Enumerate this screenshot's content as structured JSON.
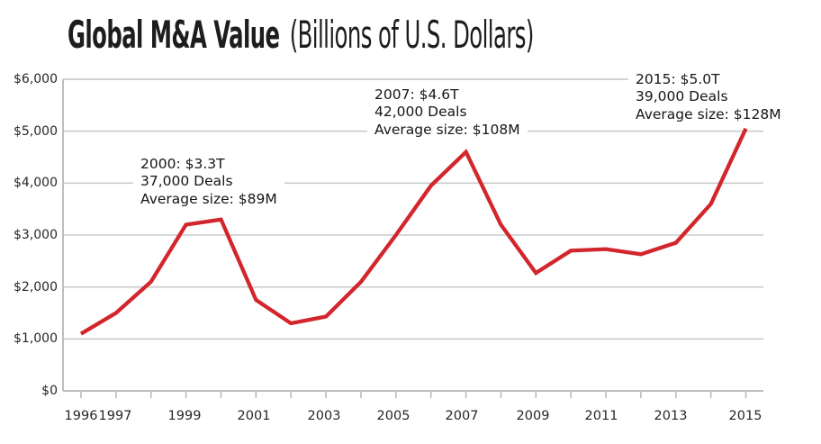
{
  "title": {
    "main": "Global M&A Value",
    "sub": "(Billions of U.S. Dollars)"
  },
  "colors": {
    "line": "#d2262c",
    "gridline": "#c9cbcd",
    "axis": "#bcbec0",
    "tick": "#b9bbbd",
    "title_text": "#1d1d1d",
    "label_text": "#272727",
    "annotation_text": "#161616",
    "background": "#ffffff"
  },
  "annotations": [
    {
      "id": "peak-2000",
      "lines": [
        "2000: $3.3T",
        "37,000 Deals",
        "Average size: $89M"
      ]
    },
    {
      "id": "peak-2007",
      "lines": [
        "2007: $4.6T",
        "42,000 Deals",
        "Average size: $108M"
      ]
    },
    {
      "id": "peak-2015",
      "lines": [
        "2015: $5.0T",
        "39,000 Deals",
        "Average size: $128M"
      ]
    }
  ],
  "chart_data": {
    "type": "line",
    "title": "Global M&A Value (Billions of U.S. Dollars)",
    "series_name": "Global M&A value, billions of U.S. dollars",
    "x": [
      1996,
      1997,
      1998,
      1999,
      2000,
      2001,
      2002,
      2003,
      2004,
      2005,
      2006,
      2007,
      2008,
      2009,
      2010,
      2011,
      2012,
      2013,
      2014,
      2015
    ],
    "values": [
      1100,
      1500,
      2100,
      3200,
      3300,
      1750,
      1300,
      1430,
      2100,
      3000,
      3950,
      4600,
      3200,
      2270,
      2700,
      2730,
      2630,
      2850,
      3600,
      5050
    ],
    "xlabel": "",
    "ylabel": "",
    "ylim": [
      0,
      6000
    ],
    "ytick_step": 1000,
    "ytick_labels": [
      "$0",
      "$1,000",
      "$2,000",
      "$3,000",
      "$4,000",
      "$5,000",
      "$6,000"
    ],
    "xtick_labels": [
      "1996",
      "1997",
      "1999",
      "2001",
      "2003",
      "2005",
      "2007",
      "2009",
      "2011",
      "2013",
      "2015"
    ],
    "grid": "horizontal",
    "legend": "none"
  }
}
